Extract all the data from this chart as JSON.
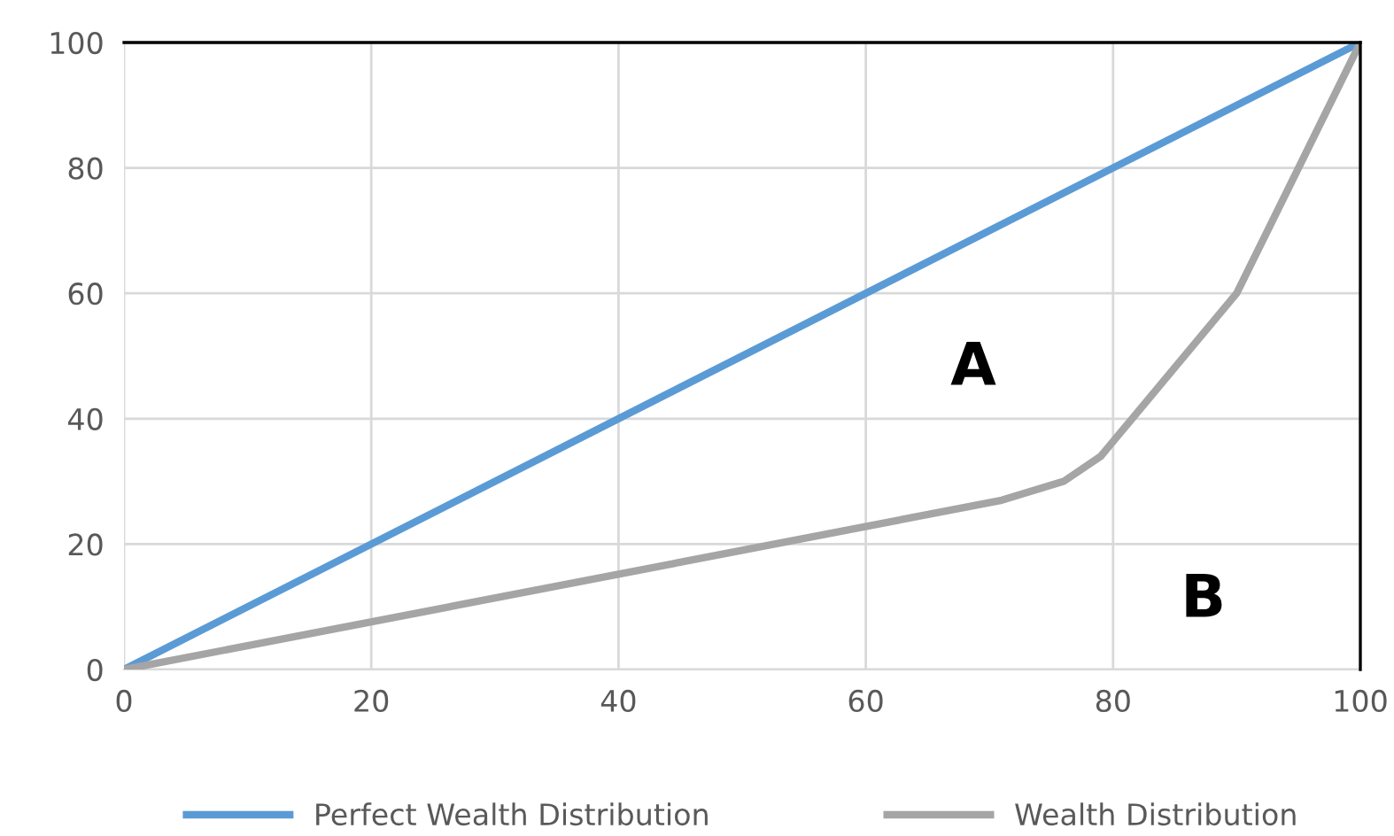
{
  "chart_data": {
    "type": "line",
    "xlim": [
      0,
      100
    ],
    "ylim": [
      0,
      100
    ],
    "xticks": [
      0,
      20,
      40,
      60,
      80,
      100
    ],
    "yticks": [
      0,
      20,
      40,
      60,
      80,
      100
    ],
    "grid": true,
    "legend": "bottom",
    "marker": "none",
    "line_style": "solid",
    "series": [
      {
        "name": "Perfect Wealth Distribution",
        "color": "#5b9bd5",
        "x": [
          0,
          100
        ],
        "values": [
          0,
          100
        ]
      },
      {
        "name": "Wealth Distribution",
        "color": "#a5a5a5",
        "x": [
          0,
          71,
          76,
          79,
          90,
          100
        ],
        "values": [
          0,
          27,
          30,
          34,
          60,
          100
        ]
      }
    ],
    "annotations": [
      "A",
      "B"
    ]
  }
}
